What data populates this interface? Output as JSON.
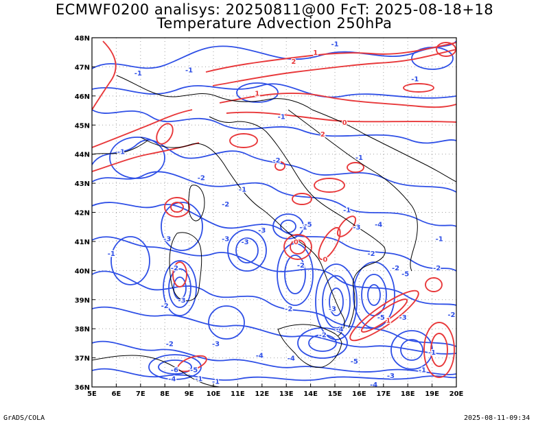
{
  "title_line1": "ECMWF0200 analisys: 20250811@00 FcT: 2025-08-18+18",
  "title_line2": "Temperature Advection 250hPa",
  "footer_left": "GrADS/COLA",
  "footer_right": "2025-08-11-09:34",
  "map": {
    "lon_labels": [
      "5E",
      "6E",
      "7E",
      "8E",
      "9E",
      "10E",
      "11E",
      "12E",
      "13E",
      "14E",
      "15E",
      "16E",
      "17E",
      "18E",
      "19E",
      "20E"
    ],
    "lat_labels": [
      "48N",
      "47N",
      "46N",
      "45N",
      "44N",
      "43N",
      "42N",
      "41N",
      "40N",
      "39N",
      "38N",
      "37N",
      "36N"
    ],
    "lon_range": [
      5,
      20
    ],
    "lat_range": [
      36,
      48
    ],
    "colors": {
      "positive_contour": "#e8383a",
      "negative_contour": "#2e4fe6",
      "coastline": "#000000",
      "grid": "#a0a0a0"
    },
    "contour_labels": [
      {
        "text": "-1",
        "lon": 6.9,
        "lat": 46.8,
        "sign": "neg"
      },
      {
        "text": "-1",
        "lon": 9.0,
        "lat": 46.9,
        "sign": "neg"
      },
      {
        "text": "1",
        "lon": 11.8,
        "lat": 46.1,
        "sign": "pos"
      },
      {
        "text": "2",
        "lon": 13.3,
        "lat": 47.2,
        "sign": "pos"
      },
      {
        "text": "1",
        "lon": 14.2,
        "lat": 47.5,
        "sign": "pos"
      },
      {
        "text": "-1",
        "lon": 15.0,
        "lat": 47.8,
        "sign": "neg"
      },
      {
        "text": "-1",
        "lon": 18.3,
        "lat": 46.6,
        "sign": "neg"
      },
      {
        "text": "0",
        "lon": 15.4,
        "lat": 45.1,
        "sign": "pos"
      },
      {
        "text": "-1",
        "lon": 6.2,
        "lat": 44.1,
        "sign": "neg"
      },
      {
        "text": "-1",
        "lon": 12.8,
        "lat": 45.3,
        "sign": "neg"
      },
      {
        "text": "-2",
        "lon": 12.6,
        "lat": 43.8,
        "sign": "neg"
      },
      {
        "text": "2",
        "lon": 14.5,
        "lat": 44.7,
        "sign": "pos"
      },
      {
        "text": "-1",
        "lon": 16.0,
        "lat": 43.9,
        "sign": "neg"
      },
      {
        "text": "-2",
        "lon": 9.5,
        "lat": 43.2,
        "sign": "neg"
      },
      {
        "text": "-2",
        "lon": 10.5,
        "lat": 42.3,
        "sign": "neg"
      },
      {
        "text": "-1",
        "lon": 11.2,
        "lat": 42.8,
        "sign": "neg"
      },
      {
        "text": "-1",
        "lon": 15.5,
        "lat": 42.1,
        "sign": "neg"
      },
      {
        "text": "-1",
        "lon": 13.7,
        "lat": 41.5,
        "sign": "neg"
      },
      {
        "text": "-5",
        "lon": 13.9,
        "lat": 41.6,
        "sign": "neg"
      },
      {
        "text": "-3",
        "lon": 15.9,
        "lat": 41.5,
        "sign": "neg"
      },
      {
        "text": "-4",
        "lon": 16.8,
        "lat": 41.6,
        "sign": "neg"
      },
      {
        "text": "-1",
        "lon": 5.8,
        "lat": 40.6,
        "sign": "neg"
      },
      {
        "text": "-3",
        "lon": 8.1,
        "lat": 41.1,
        "sign": "neg"
      },
      {
        "text": "-2",
        "lon": 8.4,
        "lat": 40.1,
        "sign": "neg"
      },
      {
        "text": "-3",
        "lon": 10.5,
        "lat": 41.1,
        "sign": "neg"
      },
      {
        "text": "-3",
        "lon": 11.3,
        "lat": 41.0,
        "sign": "neg"
      },
      {
        "text": "0",
        "lon": 13.4,
        "lat": 41.0,
        "sign": "pos"
      },
      {
        "text": "-2",
        "lon": 13.6,
        "lat": 40.2,
        "sign": "neg"
      },
      {
        "text": "0",
        "lon": 14.6,
        "lat": 40.4,
        "sign": "pos"
      },
      {
        "text": "-2",
        "lon": 16.5,
        "lat": 40.6,
        "sign": "neg"
      },
      {
        "text": "-2",
        "lon": 17.5,
        "lat": 40.1,
        "sign": "neg"
      },
      {
        "text": "-5",
        "lon": 17.9,
        "lat": 39.9,
        "sign": "neg"
      },
      {
        "text": "-2",
        "lon": 19.2,
        "lat": 40.1,
        "sign": "neg"
      },
      {
        "text": "-1",
        "lon": 19.3,
        "lat": 41.1,
        "sign": "neg"
      },
      {
        "text": "-2",
        "lon": 8.0,
        "lat": 38.8,
        "sign": "neg"
      },
      {
        "text": "-3",
        "lon": 8.7,
        "lat": 39.0,
        "sign": "neg"
      },
      {
        "text": "-2",
        "lon": 13.1,
        "lat": 38.7,
        "sign": "neg"
      },
      {
        "text": "-3",
        "lon": 14.9,
        "lat": 38.7,
        "sign": "neg"
      },
      {
        "text": "-5",
        "lon": 16.9,
        "lat": 38.4,
        "sign": "neg"
      },
      {
        "text": "-3",
        "lon": 17.8,
        "lat": 38.4,
        "sign": "neg"
      },
      {
        "text": "-2",
        "lon": 19.8,
        "lat": 38.5,
        "sign": "neg"
      },
      {
        "text": "-4",
        "lon": 15.2,
        "lat": 38.0,
        "sign": "neg"
      },
      {
        "text": "-2",
        "lon": 14.5,
        "lat": 37.8,
        "sign": "neg"
      },
      {
        "text": "-2",
        "lon": 8.2,
        "lat": 37.5,
        "sign": "neg"
      },
      {
        "text": "-3",
        "lon": 10.1,
        "lat": 37.5,
        "sign": "neg"
      },
      {
        "text": "-4",
        "lon": 11.9,
        "lat": 37.1,
        "sign": "neg"
      },
      {
        "text": "-4",
        "lon": 13.2,
        "lat": 37.0,
        "sign": "neg"
      },
      {
        "text": "-5",
        "lon": 15.8,
        "lat": 36.9,
        "sign": "neg"
      },
      {
        "text": "-4",
        "lon": 8.3,
        "lat": 36.3,
        "sign": "neg"
      },
      {
        "text": "-6",
        "lon": 8.4,
        "lat": 36.6,
        "sign": "neg"
      },
      {
        "text": "-5",
        "lon": 9.2,
        "lat": 36.6,
        "sign": "neg"
      },
      {
        "text": "-1",
        "lon": 9.4,
        "lat": 36.3,
        "sign": "neg"
      },
      {
        "text": "-3",
        "lon": 17.3,
        "lat": 36.4,
        "sign": "neg"
      },
      {
        "text": "-1",
        "lon": 18.6,
        "lat": 36.6,
        "sign": "neg"
      },
      {
        "text": "-4",
        "lon": 16.6,
        "lat": 36.1,
        "sign": "neg"
      },
      {
        "text": "-3",
        "lon": 12.0,
        "lat": 41.4,
        "sign": "neg"
      },
      {
        "text": "-1",
        "lon": 10.1,
        "lat": 36.2,
        "sign": "neg"
      },
      {
        "text": "-1",
        "lon": 19.0,
        "lat": 37.2,
        "sign": "neg"
      },
      {
        "text": "1",
        "lon": 17.2,
        "lat": 38.3,
        "sign": "pos"
      }
    ]
  }
}
